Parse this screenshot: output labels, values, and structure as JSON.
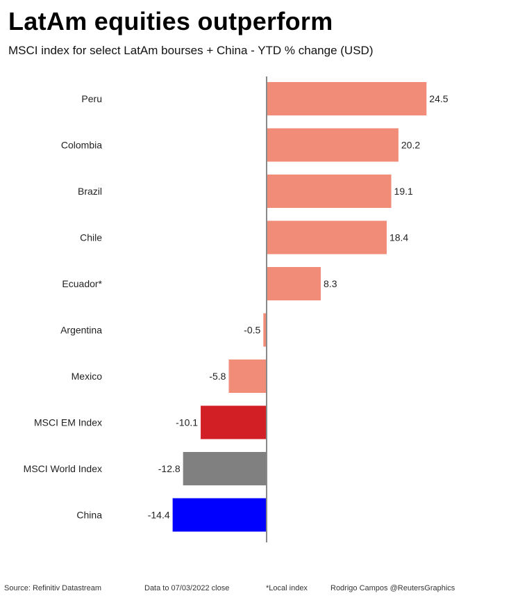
{
  "header": {
    "title": "LatAm equities outperform",
    "subtitle": "MSCI index for select LatAm bourses + China - YTD % change (USD)"
  },
  "chart_data": {
    "type": "bar",
    "orientation": "horizontal",
    "title": "LatAm equities outperform",
    "subtitle": "MSCI index for select LatAm bourses + China - YTD % change (USD)",
    "xlabel": "",
    "ylabel": "",
    "xlim": [
      -14.4,
      24.5
    ],
    "categories": [
      "Peru",
      "Colombia",
      "Brazil",
      "Chile",
      "Ecuador*",
      "Argentina",
      "Mexico",
      "MSCI EM Index",
      "MSCI World Index",
      "China"
    ],
    "values": [
      24.5,
      20.2,
      19.1,
      18.4,
      8.3,
      -0.5,
      -5.8,
      -10.1,
      -12.8,
      -14.4
    ],
    "value_labels": [
      "24.5",
      "20.2",
      "19.1",
      "18.4",
      "8.3",
      "-0.5",
      "-5.8",
      "-10.1",
      "-12.8",
      "-14.4"
    ],
    "colors": [
      "#f08c78",
      "#f08c78",
      "#f08c78",
      "#f08c78",
      "#f08c78",
      "#f08c78",
      "#f08c78",
      "#d21f26",
      "#808080",
      "#0000ff"
    ],
    "grid": false
  },
  "footer": {
    "source": "Source: Refinitiv Datastream",
    "date_note": "Data to 07/03/2022 close",
    "local_note": "*Local index",
    "credit": "Rodrigo Campos @ReutersGraphics"
  }
}
